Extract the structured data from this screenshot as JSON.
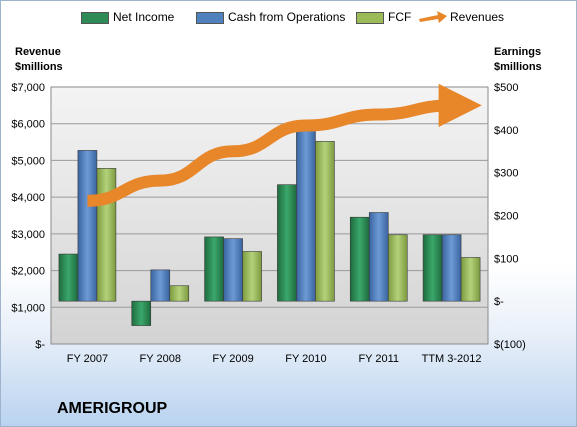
{
  "legend": [
    {
      "label": "Net Income",
      "color": "#2e8b57"
    },
    {
      "label": "Cash from Operations",
      "color": "#4f81bd"
    },
    {
      "label": "FCF",
      "color": "#9bbb59"
    },
    {
      "label": "Revenues",
      "color": "#e8862a"
    }
  ],
  "left_axis_title": [
    "Revenue",
    "$millions"
  ],
  "right_axis_title": [
    "Earnings",
    "$millions"
  ],
  "brand": "AMERIGROUP",
  "chart_data": {
    "type": "bar",
    "categories": [
      "FY 2007",
      "FY 2008",
      "FY 2009",
      "FY 2010",
      "FY 2011",
      "TTM 3-2012"
    ],
    "series": [
      {
        "name": "Net Income",
        "axis": "right",
        "color": "#2e8b57",
        "values": [
          110,
          -57,
          150,
          272,
          196,
          155
        ]
      },
      {
        "name": "Cash from Operations",
        "axis": "right",
        "color": "#4f81bd",
        "values": [
          352,
          73,
          146,
          403,
          207,
          155
        ]
      },
      {
        "name": "FCF",
        "axis": "right",
        "color": "#9bbb59",
        "values": [
          310,
          36,
          116,
          373,
          155,
          102
        ]
      },
      {
        "name": "Revenues",
        "axis": "left",
        "type": "line",
        "color": "#e8862a",
        "values": [
          3900,
          4450,
          5250,
          5950,
          6250,
          6500
        ]
      }
    ],
    "y_left": {
      "range": [
        0,
        7000
      ],
      "ticks": [
        "$-",
        "$1,000",
        "$2,000",
        "$3,000",
        "$4,000",
        "$5,000",
        "$6,000",
        "$7,000"
      ]
    },
    "y_right": {
      "range": [
        -100,
        500
      ],
      "ticks": [
        "$(100)",
        "$-",
        "$100",
        "$200",
        "$300",
        "$400",
        "$500"
      ]
    },
    "grid": true
  }
}
